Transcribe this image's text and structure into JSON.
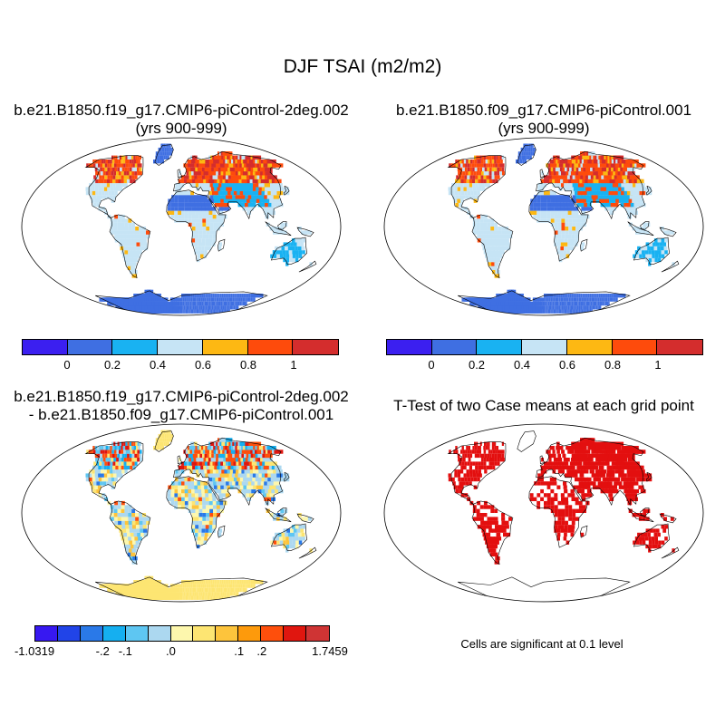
{
  "title": "DJF TSAI (m2/m2)",
  "panels": {
    "top_left": {
      "title_line1": "b.e21.B1850.f19_g17.CMIP6-piControl-2deg.002",
      "title_line2": "(yrs 900-999)"
    },
    "top_right": {
      "title_line1": "b.e21.B1850.f09_g17.CMIP6-piControl.001",
      "title_line2": "(yrs 900-999)"
    },
    "bottom_left": {
      "title_line1": "b.e21.B1850.f19_g17.CMIP6-piControl-2deg.002",
      "title_line2": "- b.e21.B1850.f09_g17.CMIP6-piControl.001"
    },
    "bottom_right": {
      "title_line1": "T-Test of two Case means at each grid point",
      "note": "Cells are significant at 0.1 level"
    }
  },
  "colorbar_case": {
    "colors": [
      "#3b1ff0",
      "#3f6fe2",
      "#19b2f2",
      "#c6e4f5",
      "#fdb813",
      "#fe4b0c",
      "#d42d2d"
    ],
    "labels": [
      "0",
      "0.2",
      "0.4",
      "0.6",
      "0.8",
      "1"
    ]
  },
  "colorbar_diff": {
    "colors": [
      "#3718f1",
      "#2144e8",
      "#2a79e8",
      "#15aff0",
      "#5ec6f2",
      "#acd8f0",
      "#fdf7ad",
      "#fde572",
      "#fdc43c",
      "#fd9a0c",
      "#fe4f0c",
      "#e0160f",
      "#cf3434"
    ],
    "labels": [
      "-1.0319",
      "-.2",
      "-.1",
      ".0",
      ".1",
      ".2",
      "1.7459"
    ]
  },
  "colors": {
    "ocean": "#ffffff",
    "significant": "#e30f0f"
  }
}
